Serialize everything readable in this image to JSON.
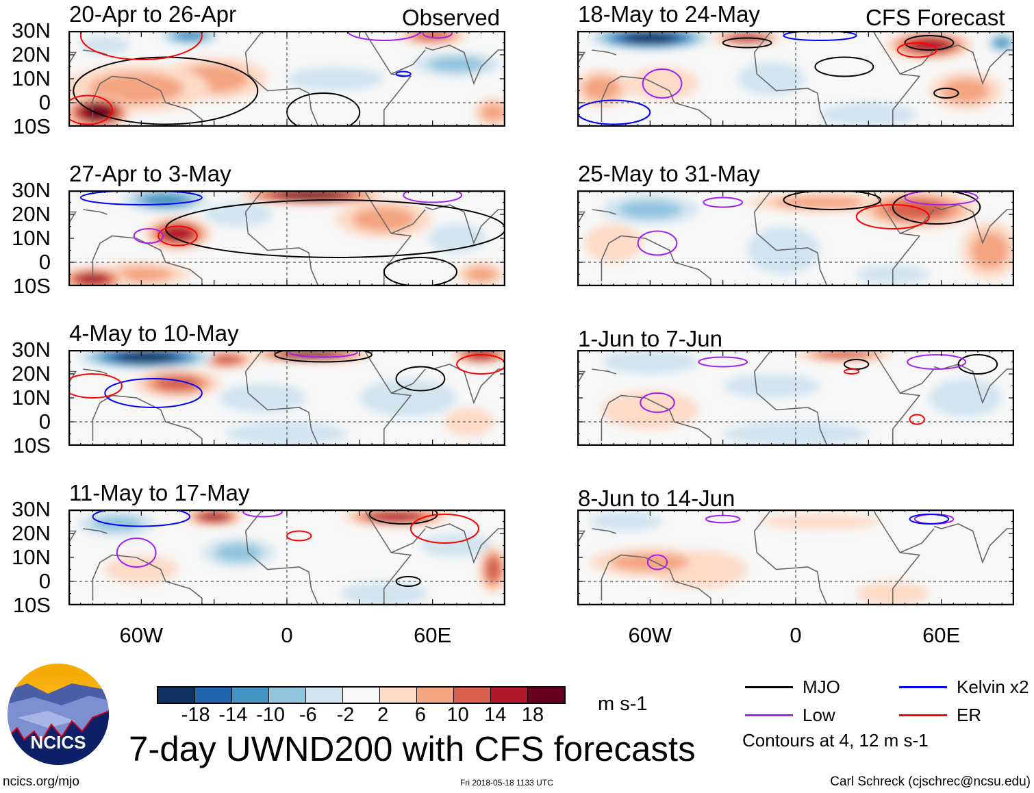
{
  "chart_data": {
    "type": "heatmap",
    "title": "7-day UWND200 with CFS forecasts",
    "units": "m s-1",
    "xlim": [
      -90,
      90
    ],
    "ylim": [
      -10,
      30
    ],
    "lat_ticks": [
      "30N",
      "20N",
      "10N",
      "0",
      "10S"
    ],
    "lon_ticks": [
      {
        "lon": -60,
        "label": "60W"
      },
      {
        "lon": 0,
        "label": "0"
      },
      {
        "lon": 60,
        "label": "60E"
      }
    ],
    "column_labels": {
      "left": "Observed",
      "right": "CFS Forecast"
    },
    "colorbar": {
      "levels": [
        "-18",
        "-14",
        "-10",
        "-6",
        "-2",
        "2",
        "6",
        "10",
        "14",
        "18"
      ],
      "colors": [
        "#0d3161",
        "#2166ac",
        "#4393c3",
        "#92c5de",
        "#d1e5f0",
        "#f7f7f7",
        "#fddbc7",
        "#f4a582",
        "#d6604d",
        "#b2182b",
        "#67001f"
      ]
    },
    "legend": [
      {
        "label": "MJO",
        "color": "#000000"
      },
      {
        "label": "Kelvin x2",
        "color": "#0000ff"
      },
      {
        "label": "Low",
        "color": "#a020f0"
      },
      {
        "label": "ER",
        "color": "#ff0000"
      }
    ],
    "contour_note": "Contours at 4, 12 m s-1",
    "panels": [
      {
        "title": "20-Apr to 26-Apr",
        "col": "left",
        "row": 0,
        "features": [
          {
            "lon": -62,
            "lat": 6,
            "rx": 30,
            "ry": 10,
            "v": 8
          },
          {
            "lon": -78,
            "lat": -4,
            "rx": 14,
            "ry": 7,
            "v": 19
          },
          {
            "lon": -30,
            "lat": 10,
            "rx": 22,
            "ry": 9,
            "v": 7
          },
          {
            "lon": -40,
            "lat": 28,
            "rx": 12,
            "ry": 4,
            "v": -11
          },
          {
            "lon": -75,
            "lat": 24,
            "rx": 10,
            "ry": 4,
            "v": -5
          },
          {
            "lon": 20,
            "lat": 10,
            "rx": 20,
            "ry": 5,
            "v": -3
          },
          {
            "lon": 70,
            "lat": 16,
            "rx": 18,
            "ry": 5,
            "v": -7
          },
          {
            "lon": 60,
            "lat": 28,
            "rx": 14,
            "ry": 4,
            "v": 11
          },
          {
            "lon": 85,
            "lat": -4,
            "rx": 8,
            "ry": 6,
            "v": 6
          }
        ],
        "contours": [
          {
            "type": "MJO",
            "lon": -50,
            "lat": 5,
            "rx": 38,
            "ry": 14
          },
          {
            "type": "MJO",
            "lon": 15,
            "lat": -4,
            "rx": 15,
            "ry": 8
          },
          {
            "type": "ER",
            "lon": -60,
            "lat": 28,
            "rx": 25,
            "ry": 10
          },
          {
            "type": "ER",
            "lon": -82,
            "lat": -3,
            "rx": 10,
            "ry": 6
          },
          {
            "type": "Low",
            "lon": 40,
            "lat": 30,
            "rx": 15,
            "ry": 4
          },
          {
            "type": "Kelvin x2",
            "lon": 48,
            "lat": 12,
            "rx": 3,
            "ry": 1
          },
          {
            "type": "Low",
            "lon": 62,
            "lat": 29,
            "rx": 6,
            "ry": 2
          }
        ]
      },
      {
        "title": "27-Apr to 3-May",
        "col": "left",
        "row": 1,
        "features": [
          {
            "lon": 10,
            "lat": 28,
            "rx": 30,
            "ry": 4,
            "v": 19
          },
          {
            "lon": -50,
            "lat": 26,
            "rx": 18,
            "ry": 5,
            "v": -13
          },
          {
            "lon": -45,
            "lat": 12,
            "rx": 14,
            "ry": 7,
            "v": 14
          },
          {
            "lon": -80,
            "lat": -7,
            "rx": 14,
            "ry": 5,
            "v": 16
          },
          {
            "lon": -60,
            "lat": -5,
            "rx": 20,
            "ry": 5,
            "v": 9
          },
          {
            "lon": 40,
            "lat": 18,
            "rx": 20,
            "ry": 8,
            "v": 8
          },
          {
            "lon": -20,
            "lat": 20,
            "rx": 14,
            "ry": 5,
            "v": -4
          },
          {
            "lon": 70,
            "lat": 10,
            "rx": 12,
            "ry": 6,
            "v": -4
          },
          {
            "lon": 80,
            "lat": -5,
            "rx": 10,
            "ry": 5,
            "v": 7
          }
        ],
        "contours": [
          {
            "type": "MJO",
            "lon": 20,
            "lat": 14,
            "rx": 70,
            "ry": 12
          },
          {
            "type": "MJO",
            "lon": 55,
            "lat": -4,
            "rx": 15,
            "ry": 6
          },
          {
            "type": "ER",
            "lon": -45,
            "lat": 11,
            "rx": 8,
            "ry": 4
          },
          {
            "type": "Kelvin x2",
            "lon": -60,
            "lat": 27,
            "rx": 25,
            "ry": 3
          },
          {
            "type": "Low",
            "lon": -57,
            "lat": 11,
            "rx": 6,
            "ry": 3
          },
          {
            "type": "Low",
            "lon": 60,
            "lat": 28,
            "rx": 12,
            "ry": 3
          }
        ]
      },
      {
        "title": "4-May to 10-May",
        "col": "left",
        "row": 2,
        "features": [
          {
            "lon": -58,
            "lat": 27,
            "rx": 28,
            "ry": 5,
            "v": -19
          },
          {
            "lon": 10,
            "lat": 28,
            "rx": 25,
            "ry": 3,
            "v": 19
          },
          {
            "lon": -45,
            "lat": 16,
            "rx": 18,
            "ry": 6,
            "v": 11
          },
          {
            "lon": -25,
            "lat": 26,
            "rx": 12,
            "ry": 4,
            "v": 10
          },
          {
            "lon": -10,
            "lat": 10,
            "rx": 18,
            "ry": 6,
            "v": -6
          },
          {
            "lon": 0,
            "lat": -5,
            "rx": 25,
            "ry": 5,
            "v": -6
          },
          {
            "lon": 80,
            "lat": 28,
            "rx": 12,
            "ry": 4,
            "v": 14
          },
          {
            "lon": 50,
            "lat": 10,
            "rx": 20,
            "ry": 8,
            "v": -4
          },
          {
            "lon": 75,
            "lat": 0,
            "rx": 10,
            "ry": 6,
            "v": 4
          }
        ],
        "contours": [
          {
            "type": "MJO",
            "lon": 15,
            "lat": 28,
            "rx": 20,
            "ry": 3
          },
          {
            "type": "MJO",
            "lon": 55,
            "lat": 18,
            "rx": 10,
            "ry": 5
          },
          {
            "type": "Kelvin x2",
            "lon": -55,
            "lat": 12,
            "rx": 20,
            "ry": 6
          },
          {
            "type": "ER",
            "lon": -80,
            "lat": 15,
            "rx": 12,
            "ry": 5
          },
          {
            "type": "ER",
            "lon": 80,
            "lat": 24,
            "rx": 10,
            "ry": 4
          },
          {
            "type": "Low",
            "lon": 15,
            "lat": 29,
            "rx": 14,
            "ry": 2
          }
        ]
      },
      {
        "title": "11-May to 17-May",
        "col": "left",
        "row": 3,
        "features": [
          {
            "lon": -30,
            "lat": 27,
            "rx": 12,
            "ry": 4,
            "v": 16
          },
          {
            "lon": 45,
            "lat": 27,
            "rx": 22,
            "ry": 4,
            "v": 16
          },
          {
            "lon": -70,
            "lat": 24,
            "rx": 16,
            "ry": 5,
            "v": -7
          },
          {
            "lon": -20,
            "lat": 12,
            "rx": 15,
            "ry": 6,
            "v": -9
          },
          {
            "lon": 40,
            "lat": -5,
            "rx": 18,
            "ry": 5,
            "v": -6
          },
          {
            "lon": -60,
            "lat": 5,
            "rx": 15,
            "ry": 6,
            "v": 3
          },
          {
            "lon": 85,
            "lat": 5,
            "rx": 6,
            "ry": 10,
            "v": 11
          },
          {
            "lon": 70,
            "lat": 15,
            "rx": 15,
            "ry": 5,
            "v": -3
          }
        ],
        "contours": [
          {
            "type": "MJO",
            "lon": 48,
            "lat": 28,
            "rx": 14,
            "ry": 4
          },
          {
            "type": "MJO",
            "lon": 50,
            "lat": 0,
            "rx": 5,
            "ry": 2
          },
          {
            "type": "Kelvin x2",
            "lon": -60,
            "lat": 27,
            "rx": 20,
            "ry": 4
          },
          {
            "type": "Low",
            "lon": -62,
            "lat": 12,
            "rx": 8,
            "ry": 6
          },
          {
            "type": "Low",
            "lon": -10,
            "lat": 29,
            "rx": 8,
            "ry": 2
          },
          {
            "type": "ER",
            "lon": 5,
            "lat": 19,
            "rx": 5,
            "ry": 2
          },
          {
            "type": "ER",
            "lon": 65,
            "lat": 22,
            "rx": 14,
            "ry": 6
          }
        ]
      },
      {
        "title": "18-May to 24-May",
        "col": "right",
        "row": 0,
        "features": [
          {
            "lon": -60,
            "lat": 27,
            "rx": 25,
            "ry": 5,
            "v": -19
          },
          {
            "lon": -20,
            "lat": 27,
            "rx": 14,
            "ry": 3,
            "v": 15
          },
          {
            "lon": 55,
            "lat": 24,
            "rx": 18,
            "ry": 6,
            "v": 15
          },
          {
            "lon": -80,
            "lat": 6,
            "rx": 12,
            "ry": 8,
            "v": 7
          },
          {
            "lon": -55,
            "lat": 8,
            "rx": 15,
            "ry": 7,
            "v": 4
          },
          {
            "lon": -10,
            "lat": 10,
            "rx": 14,
            "ry": 7,
            "v": -5
          },
          {
            "lon": 30,
            "lat": -5,
            "rx": 20,
            "ry": 5,
            "v": -6
          },
          {
            "lon": 70,
            "lat": 5,
            "rx": 15,
            "ry": 8,
            "v": 7
          },
          {
            "lon": 85,
            "lat": 25,
            "rx": 6,
            "ry": 4,
            "v": -11
          }
        ],
        "contours": [
          {
            "type": "MJO",
            "lon": -20,
            "lat": 25,
            "rx": 10,
            "ry": 2
          },
          {
            "type": "MJO",
            "lon": 55,
            "lat": 25,
            "rx": 10,
            "ry": 3
          },
          {
            "type": "MJO",
            "lon": 20,
            "lat": 15,
            "rx": 12,
            "ry": 4
          },
          {
            "type": "MJO",
            "lon": 62,
            "lat": 4,
            "rx": 5,
            "ry": 2
          },
          {
            "type": "Low",
            "lon": -55,
            "lat": 8,
            "rx": 8,
            "ry": 6
          },
          {
            "type": "Kelvin x2",
            "lon": -75,
            "lat": -4,
            "rx": 15,
            "ry": 5
          },
          {
            "type": "Kelvin x2",
            "lon": 10,
            "lat": 28,
            "rx": 15,
            "ry": 2
          },
          {
            "type": "ER",
            "lon": 50,
            "lat": 22,
            "rx": 8,
            "ry": 3
          }
        ]
      },
      {
        "title": "25-May to 31-May",
        "col": "right",
        "row": 1,
        "features": [
          {
            "lon": 50,
            "lat": 22,
            "rx": 25,
            "ry": 8,
            "v": 11
          },
          {
            "lon": 10,
            "lat": 25,
            "rx": 30,
            "ry": 4,
            "v": 7
          },
          {
            "lon": -60,
            "lat": 22,
            "rx": 20,
            "ry": 6,
            "v": -7
          },
          {
            "lon": -75,
            "lat": 8,
            "rx": 12,
            "ry": 8,
            "v": 3
          },
          {
            "lon": -5,
            "lat": 5,
            "rx": 15,
            "ry": 10,
            "v": -3
          },
          {
            "lon": 80,
            "lat": 5,
            "rx": 12,
            "ry": 12,
            "v": 7
          },
          {
            "lon": 40,
            "lat": -5,
            "rx": 15,
            "ry": 4,
            "v": -3
          }
        ],
        "contours": [
          {
            "type": "MJO",
            "lon": 15,
            "lat": 26,
            "rx": 20,
            "ry": 4
          },
          {
            "type": "MJO",
            "lon": 58,
            "lat": 23,
            "rx": 18,
            "ry": 7
          },
          {
            "type": "ER",
            "lon": 40,
            "lat": 19,
            "rx": 15,
            "ry": 5
          },
          {
            "type": "Low",
            "lon": -57,
            "lat": 8,
            "rx": 8,
            "ry": 5
          },
          {
            "type": "Low",
            "lon": -30,
            "lat": 25,
            "rx": 8,
            "ry": 2
          },
          {
            "type": "Low",
            "lon": 60,
            "lat": 27,
            "rx": 15,
            "ry": 3
          }
        ]
      },
      {
        "title": "1-Jun to 7-Jun",
        "col": "right",
        "row": 2,
        "features": [
          {
            "lon": 20,
            "lat": 28,
            "rx": 20,
            "ry": 3,
            "v": 11
          },
          {
            "lon": -60,
            "lat": 25,
            "rx": 20,
            "ry": 5,
            "v": -6
          },
          {
            "lon": 0,
            "lat": -5,
            "rx": 30,
            "ry": 5,
            "v": -6
          },
          {
            "lon": -60,
            "lat": 5,
            "rx": 20,
            "ry": 8,
            "v": 3
          },
          {
            "lon": -10,
            "lat": 15,
            "rx": 20,
            "ry": 5,
            "v": -3
          },
          {
            "lon": 70,
            "lat": 10,
            "rx": 15,
            "ry": 8,
            "v": -3
          }
        ],
        "contours": [
          {
            "type": "MJO",
            "lon": 25,
            "lat": 24,
            "rx": 5,
            "ry": 2
          },
          {
            "type": "MJO",
            "lon": 75,
            "lat": 24,
            "rx": 8,
            "ry": 4
          },
          {
            "type": "Low",
            "lon": -57,
            "lat": 8,
            "rx": 7,
            "ry": 4
          },
          {
            "type": "Low",
            "lon": -30,
            "lat": 25,
            "rx": 10,
            "ry": 2
          },
          {
            "type": "Low",
            "lon": 58,
            "lat": 25,
            "rx": 12,
            "ry": 3
          },
          {
            "type": "ER",
            "lon": 50,
            "lat": 1,
            "rx": 3,
            "ry": 2
          },
          {
            "type": "ER",
            "lon": 23,
            "lat": 21,
            "rx": 3,
            "ry": 1
          }
        ]
      },
      {
        "title": "8-Jun to 14-Jun",
        "col": "right",
        "row": 3,
        "features": [
          {
            "lon": -60,
            "lat": 8,
            "rx": 25,
            "ry": 6,
            "v": 6
          },
          {
            "lon": -40,
            "lat": 5,
            "rx": 20,
            "ry": 8,
            "v": 3
          },
          {
            "lon": -70,
            "lat": 25,
            "rx": 15,
            "ry": 4,
            "v": -3
          },
          {
            "lon": 40,
            "lat": -5,
            "rx": 15,
            "ry": 5,
            "v": 3
          },
          {
            "lon": 10,
            "lat": 25,
            "rx": 25,
            "ry": 3,
            "v": 3
          }
        ],
        "contours": [
          {
            "type": "Low",
            "lon": -57,
            "lat": 8,
            "rx": 4,
            "ry": 3
          },
          {
            "type": "Low",
            "lon": -30,
            "lat": 26,
            "rx": 7,
            "ry": 1.5
          },
          {
            "type": "Low",
            "lon": 57,
            "lat": 26,
            "rx": 8,
            "ry": 2
          },
          {
            "type": "Kelvin x2",
            "lon": 55,
            "lat": 26,
            "rx": 8,
            "ry": 2
          }
        ]
      }
    ]
  },
  "logo": {
    "text": "NCICS"
  },
  "footer": {
    "site": "ncics.org/mjo",
    "timestamp": "Fri 2018-05-18 1133 UTC",
    "author": "Carl Schreck (cjschrec@ncsu.edu)"
  }
}
